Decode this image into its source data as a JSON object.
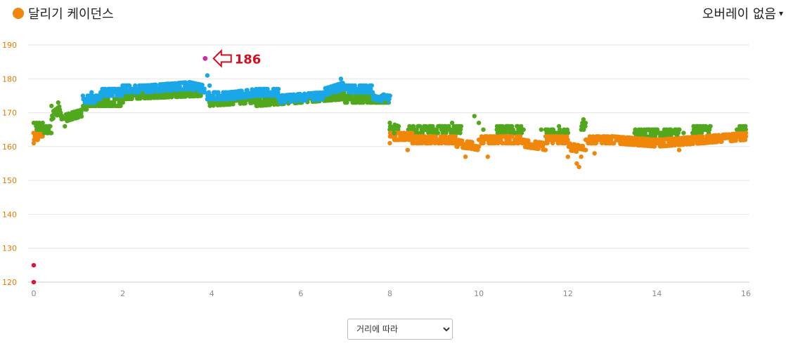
{
  "header": {
    "title": "달리기 케이던스",
    "title_dot_color": "#f0860a",
    "overlay_label": "오버레이 없음",
    "overlay_caret": "▾"
  },
  "chart_data": {
    "type": "scatter",
    "title": "달리기 케이던스",
    "xlabel": "",
    "ylabel": "",
    "xlim": [
      0,
      16
    ],
    "ylim": [
      120,
      190
    ],
    "x_ticks": [
      0,
      2,
      4,
      6,
      8,
      10,
      12,
      14,
      16
    ],
    "y_ticks": [
      120,
      130,
      140,
      150,
      160,
      170,
      180,
      190
    ],
    "grid": true,
    "colors": {
      "red": "#e8103a",
      "orange": "#f0860a",
      "green": "#52a81c",
      "blue": "#1aa7e8",
      "magenta": "#d12aa8"
    },
    "bands": [
      {
        "name": "",
        "color": "orange",
        "segments": [
          [
            0.0,
            0.2,
            163,
            163
          ]
        ]
      },
      {
        "name": "",
        "color": "green",
        "segments": [
          [
            0.05,
            0.2,
            166,
            166
          ],
          [
            0.2,
            0.4,
            165,
            165
          ],
          [
            0.4,
            0.6,
            169,
            171
          ],
          [
            0.6,
            1.1,
            168,
            170
          ],
          [
            1.1,
            1.3,
            172,
            172
          ],
          [
            1.3,
            2.0,
            173,
            173
          ],
          [
            2.0,
            3.8,
            175,
            176
          ],
          [
            3.9,
            5.0,
            173,
            174
          ],
          [
            5.0,
            6.0,
            173,
            174
          ],
          [
            6.0,
            7.0,
            174,
            175
          ],
          [
            7.0,
            8.0,
            174,
            174
          ]
        ]
      },
      {
        "name": "",
        "color": "blue",
        "segments": [
          [
            1.1,
            1.5,
            174,
            174
          ],
          [
            1.5,
            2.0,
            176,
            176
          ],
          [
            2.0,
            2.5,
            177,
            177
          ],
          [
            2.5,
            3.5,
            177,
            178
          ],
          [
            3.5,
            3.85,
            178,
            177
          ],
          [
            3.9,
            4.4,
            175,
            175
          ],
          [
            4.4,
            5.0,
            175,
            176
          ],
          [
            5.0,
            5.5,
            176,
            176
          ],
          [
            5.5,
            6.5,
            174,
            175
          ],
          [
            6.5,
            7.0,
            176,
            178
          ],
          [
            7.0,
            7.6,
            177,
            177
          ],
          [
            7.6,
            8.0,
            175,
            174
          ]
        ]
      },
      {
        "name": "",
        "color": "green",
        "segments": [
          [
            8.0,
            8.2,
            166,
            165
          ],
          [
            8.4,
            9.6,
            165,
            165
          ],
          [
            10.4,
            11.0,
            165,
            165
          ],
          [
            11.5,
            12.0,
            164,
            164
          ],
          [
            12.3,
            12.4,
            166,
            166
          ],
          [
            13.5,
            14.5,
            164,
            164
          ],
          [
            14.8,
            15.2,
            165,
            165
          ],
          [
            15.8,
            16.0,
            165,
            165
          ]
        ]
      },
      {
        "name": "",
        "color": "orange",
        "segments": [
          [
            8.0,
            8.5,
            163,
            163
          ],
          [
            8.5,
            9.5,
            162,
            162
          ],
          [
            9.5,
            10.0,
            161,
            160
          ],
          [
            10.0,
            11.0,
            162,
            162
          ],
          [
            11.0,
            11.5,
            161,
            160
          ],
          [
            11.5,
            12.0,
            162,
            162
          ],
          [
            12.0,
            12.4,
            160,
            159
          ],
          [
            12.4,
            13.0,
            162,
            162
          ],
          [
            13.0,
            14.0,
            162,
            161
          ],
          [
            14.0,
            15.0,
            161,
            162
          ],
          [
            15.0,
            16.0,
            162,
            163
          ]
        ]
      }
    ],
    "points": [
      {
        "x": 0.0,
        "y": 125,
        "color": "red"
      },
      {
        "x": 0.0,
        "y": 120,
        "color": "red"
      },
      {
        "x": 0.0,
        "y": 161,
        "color": "orange"
      },
      {
        "x": 0.0,
        "y": 167,
        "color": "green"
      },
      {
        "x": 0.2,
        "y": 167,
        "color": "green"
      },
      {
        "x": 0.4,
        "y": 172,
        "color": "green"
      },
      {
        "x": 0.55,
        "y": 173,
        "color": "green"
      },
      {
        "x": 0.7,
        "y": 166,
        "color": "green"
      },
      {
        "x": 1.3,
        "y": 176,
        "color": "blue"
      },
      {
        "x": 3.9,
        "y": 181,
        "color": "blue"
      },
      {
        "x": 3.95,
        "y": 178,
        "color": "blue"
      },
      {
        "x": 6.9,
        "y": 180,
        "color": "blue"
      },
      {
        "x": 7.0,
        "y": 173,
        "color": "green"
      },
      {
        "x": 7.9,
        "y": 173,
        "color": "green"
      },
      {
        "x": 8.0,
        "y": 161,
        "color": "orange"
      },
      {
        "x": 8.0,
        "y": 167,
        "color": "green"
      },
      {
        "x": 8.1,
        "y": 164,
        "color": "green"
      },
      {
        "x": 8.4,
        "y": 159,
        "color": "orange"
      },
      {
        "x": 9.4,
        "y": 167,
        "color": "green"
      },
      {
        "x": 9.7,
        "y": 157,
        "color": "orange"
      },
      {
        "x": 9.9,
        "y": 169,
        "color": "green"
      },
      {
        "x": 10.0,
        "y": 167,
        "color": "green"
      },
      {
        "x": 10.2,
        "y": 157,
        "color": "orange"
      },
      {
        "x": 10.1,
        "y": 165,
        "color": "green"
      },
      {
        "x": 11.4,
        "y": 165,
        "color": "green"
      },
      {
        "x": 11.8,
        "y": 166,
        "color": "green"
      },
      {
        "x": 12.0,
        "y": 157,
        "color": "orange"
      },
      {
        "x": 12.2,
        "y": 155,
        "color": "orange"
      },
      {
        "x": 12.25,
        "y": 154,
        "color": "orange"
      },
      {
        "x": 12.35,
        "y": 168,
        "color": "green"
      },
      {
        "x": 12.3,
        "y": 157,
        "color": "orange"
      },
      {
        "x": 12.6,
        "y": 158,
        "color": "orange"
      },
      {
        "x": 13.5,
        "y": 164,
        "color": "green"
      },
      {
        "x": 14.5,
        "y": 159,
        "color": "orange"
      },
      {
        "x": 14.6,
        "y": 164,
        "color": "green"
      },
      {
        "x": 16.0,
        "y": 163,
        "color": "orange"
      }
    ],
    "highlight": {
      "x": 3.85,
      "y": 186,
      "color": "magenta",
      "label": "186",
      "annotation_color": "#d0101e"
    }
  },
  "controls": {
    "x_axis_mode": {
      "selected": "거리에 따라",
      "options": [
        "거리에 따라"
      ]
    }
  }
}
